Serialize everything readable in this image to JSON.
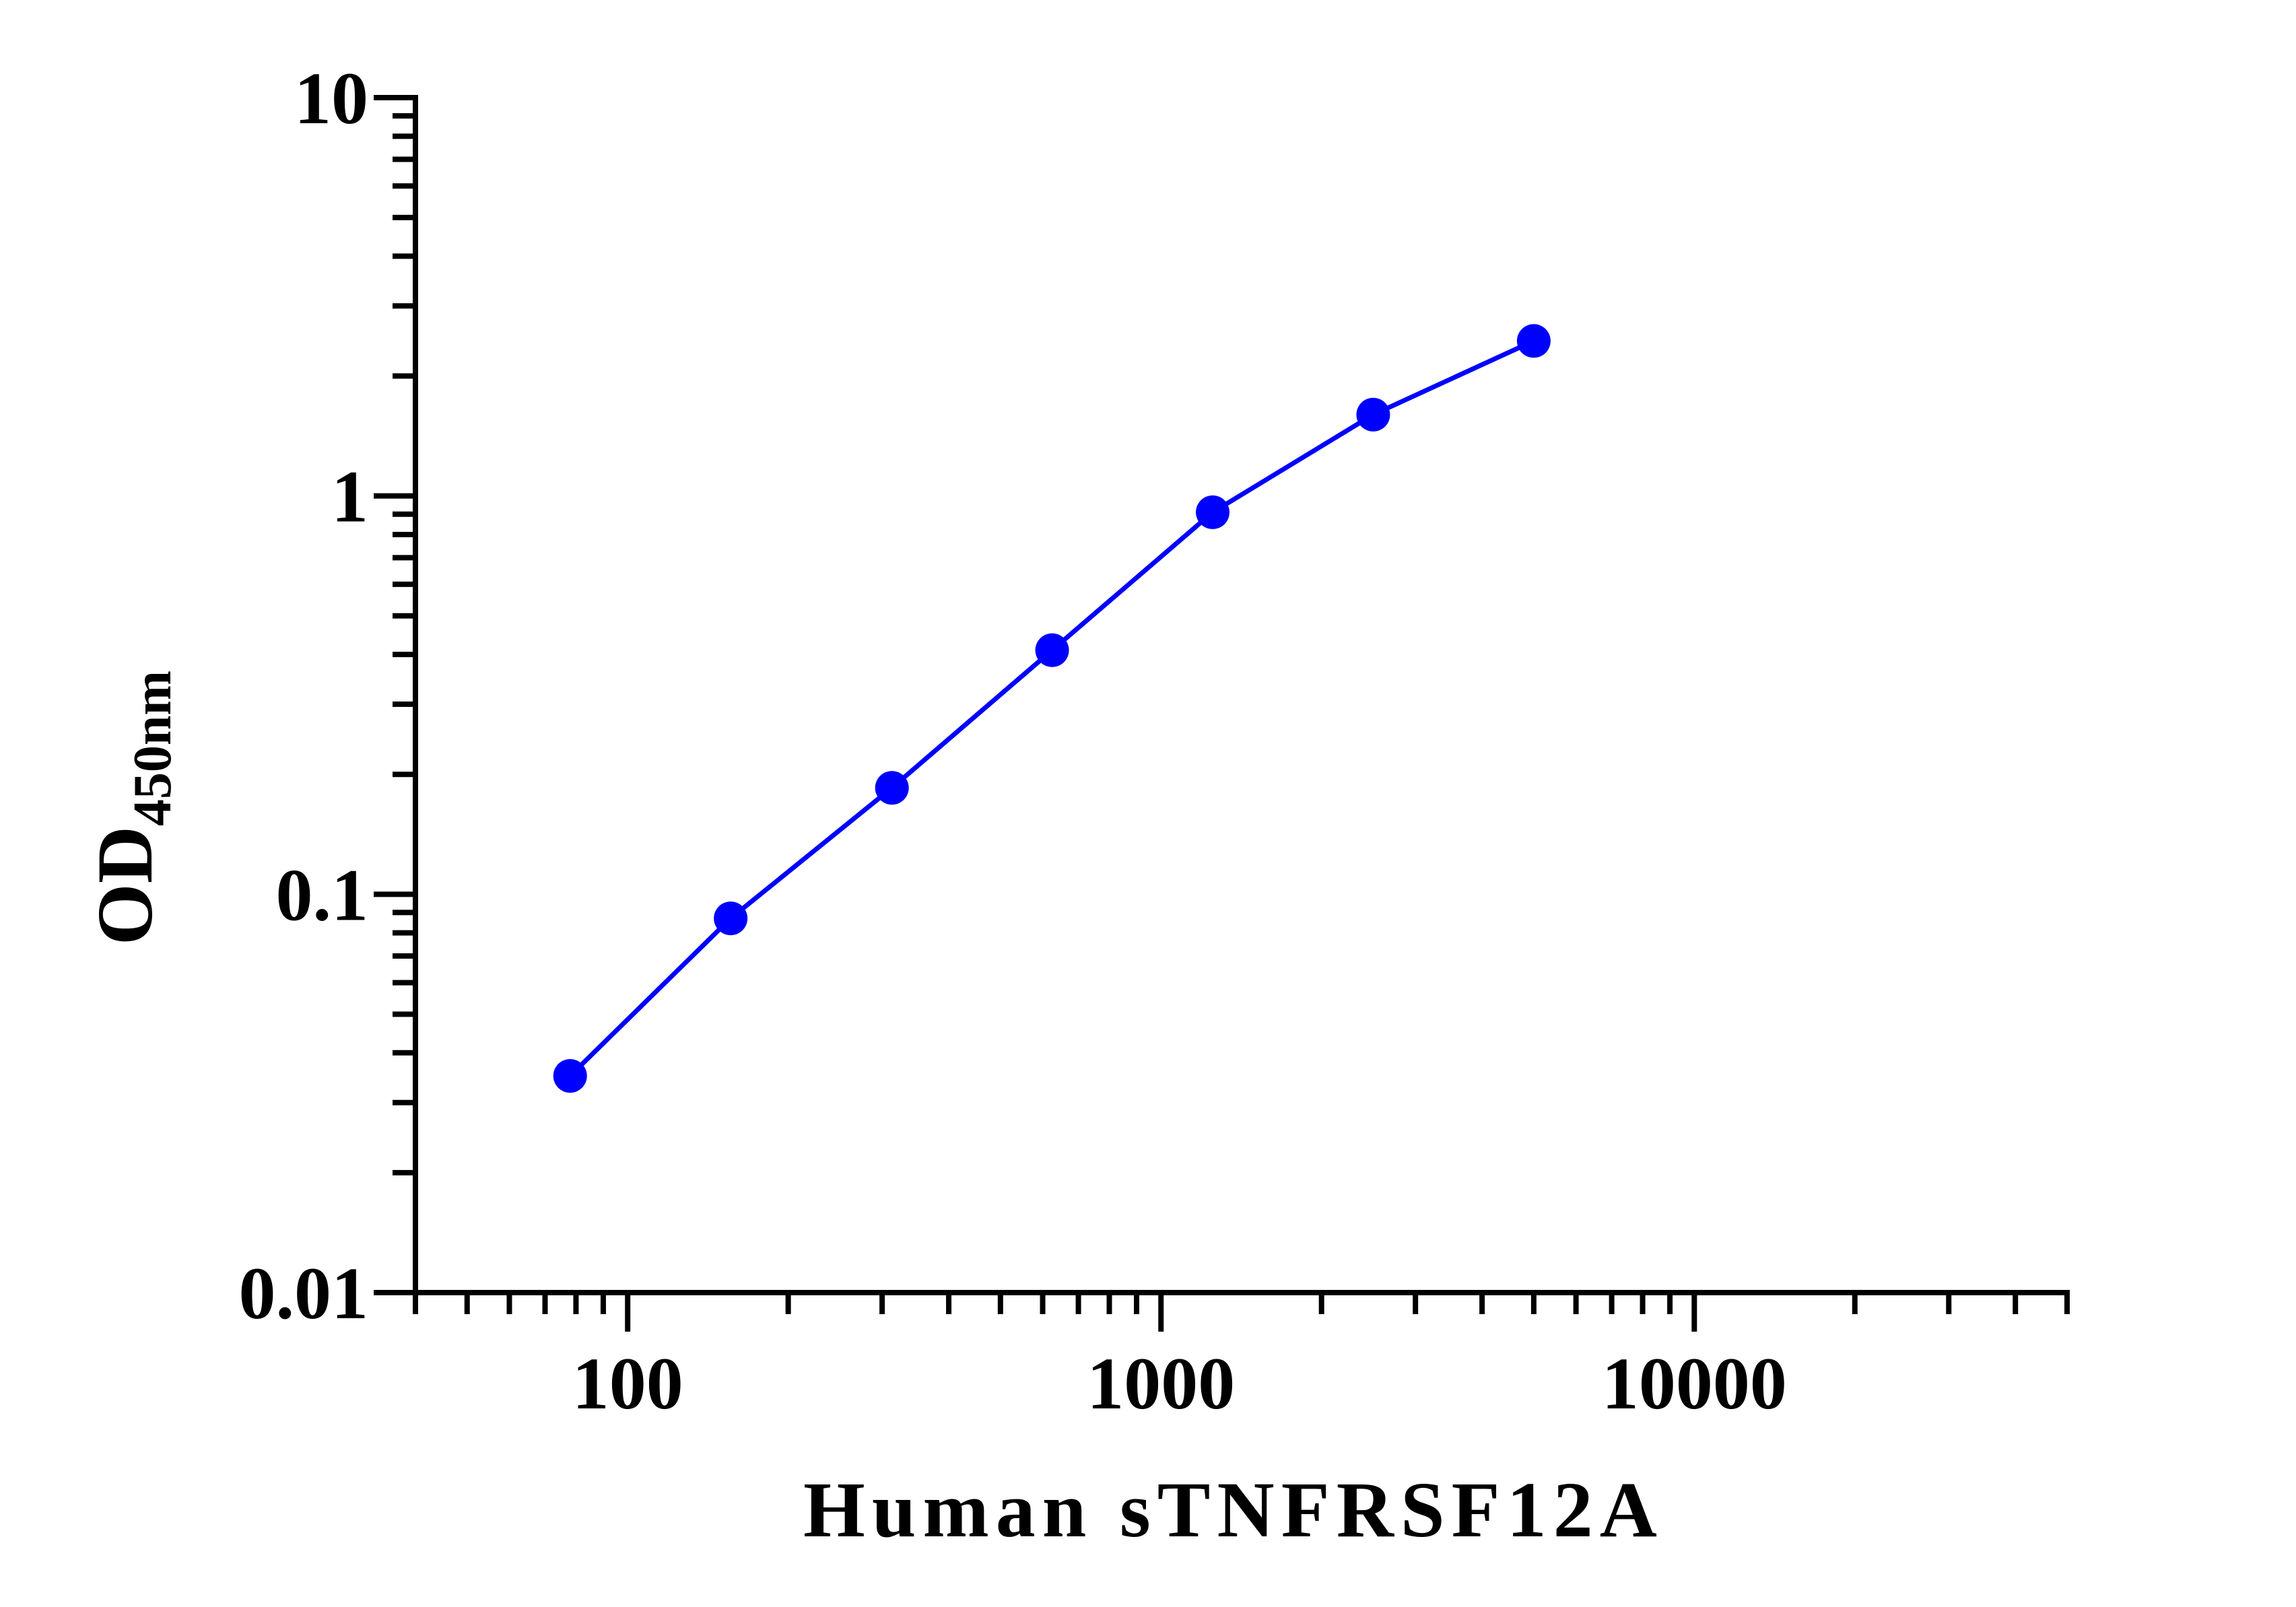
{
  "chart_data": {
    "type": "line",
    "title": "",
    "xlabel": "Human sTNFRSF12A",
    "ylabel_main": "OD",
    "ylabel_sub": "450nm",
    "x_scale": "log",
    "y_scale": "log",
    "xlim": [
      40,
      50000
    ],
    "ylim": [
      0.01,
      10
    ],
    "x_tick_labels": [
      {
        "value": 100,
        "label": "100"
      },
      {
        "value": 1000,
        "label": "1000"
      },
      {
        "value": 10000,
        "label": "10000"
      }
    ],
    "y_tick_labels": [
      {
        "value": 0.01,
        "label": "0.01"
      },
      {
        "value": 0.1,
        "label": "0.1"
      },
      {
        "value": 1,
        "label": "1"
      },
      {
        "value": 10,
        "label": "10"
      }
    ],
    "grid": false,
    "legend": "none",
    "series": [
      {
        "color": "#0000ff",
        "x": [
          78,
          156,
          313,
          625,
          1250,
          2500,
          5000
        ],
        "y": [
          0.035,
          0.087,
          0.185,
          0.41,
          0.91,
          1.6,
          2.45
        ]
      }
    ]
  }
}
